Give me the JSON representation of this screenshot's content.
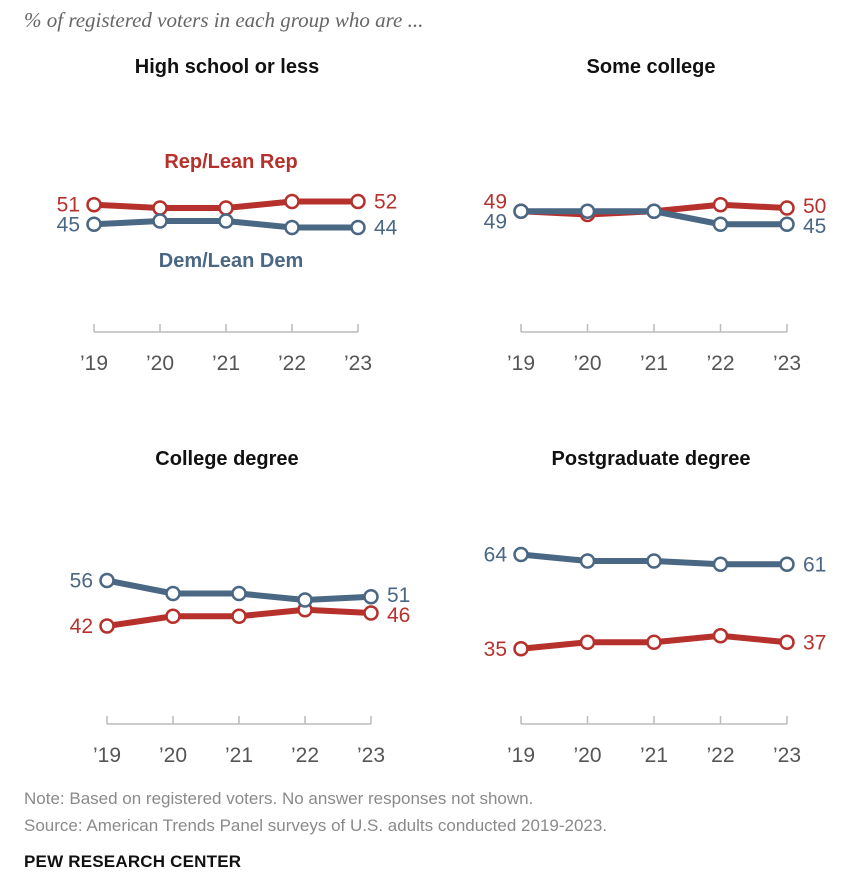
{
  "subtitle": "% of registered voters in each group who are ...",
  "chart_data": {
    "type": "line",
    "categories": [
      "’19",
      "’20",
      "’21",
      "’22",
      "’23"
    ],
    "series_labels": {
      "rep": "Rep/Lean Rep",
      "dem": "Dem/Lean Dem"
    },
    "colors": {
      "rep": "#b7312c",
      "dem": "#4a6784",
      "axis": "#bbbbbb"
    },
    "panels": [
      {
        "title": "High school or less",
        "series": [
          {
            "key": "rep",
            "name": "Rep/Lean Rep",
            "values": [
              51,
              50,
              50,
              52,
              52
            ]
          },
          {
            "key": "dem",
            "name": "Dem/Lean Dem",
            "values": [
              45,
              46,
              46,
              44,
              44
            ]
          }
        ],
        "labels": {
          "rep": {
            "start": "51",
            "end": "52"
          },
          "dem": {
            "start": "45",
            "end": "44"
          }
        }
      },
      {
        "title": "Some college",
        "series": [
          {
            "key": "rep",
            "name": "Rep/Lean Rep",
            "values": [
              49,
              48,
              49,
              51,
              50
            ]
          },
          {
            "key": "dem",
            "name": "Dem/Lean Dem",
            "values": [
              49,
              49,
              49,
              45,
              45
            ]
          }
        ],
        "labels": {
          "rep": {
            "start": "49",
            "end": "50"
          },
          "dem": {
            "start": "49",
            "end": "45"
          }
        }
      },
      {
        "title": "College degree",
        "series": [
          {
            "key": "rep",
            "name": "Rep/Lean Rep",
            "values": [
              42,
              45,
              45,
              47,
              46
            ]
          },
          {
            "key": "dem",
            "name": "Dem/Lean Dem",
            "values": [
              56,
              52,
              52,
              50,
              51
            ]
          }
        ],
        "labels": {
          "rep": {
            "start": "42",
            "end": "46"
          },
          "dem": {
            "start": "56",
            "end": "51"
          }
        }
      },
      {
        "title": "Postgraduate degree",
        "series": [
          {
            "key": "rep",
            "name": "Rep/Lean Rep",
            "values": [
              35,
              37,
              37,
              39,
              37
            ]
          },
          {
            "key": "dem",
            "name": "Dem/Lean Dem",
            "values": [
              64,
              62,
              62,
              61,
              61
            ]
          }
        ],
        "labels": {
          "rep": {
            "start": "35",
            "end": "37"
          },
          "dem": {
            "start": "64",
            "end": "61"
          }
        }
      }
    ]
  },
  "footer": {
    "note": "Note: Based on registered voters. No answer responses not shown.",
    "source": "Source: American Trends Panel surveys of U.S. adults conducted 2019-2023.",
    "organization": "PEW RESEARCH CENTER"
  }
}
